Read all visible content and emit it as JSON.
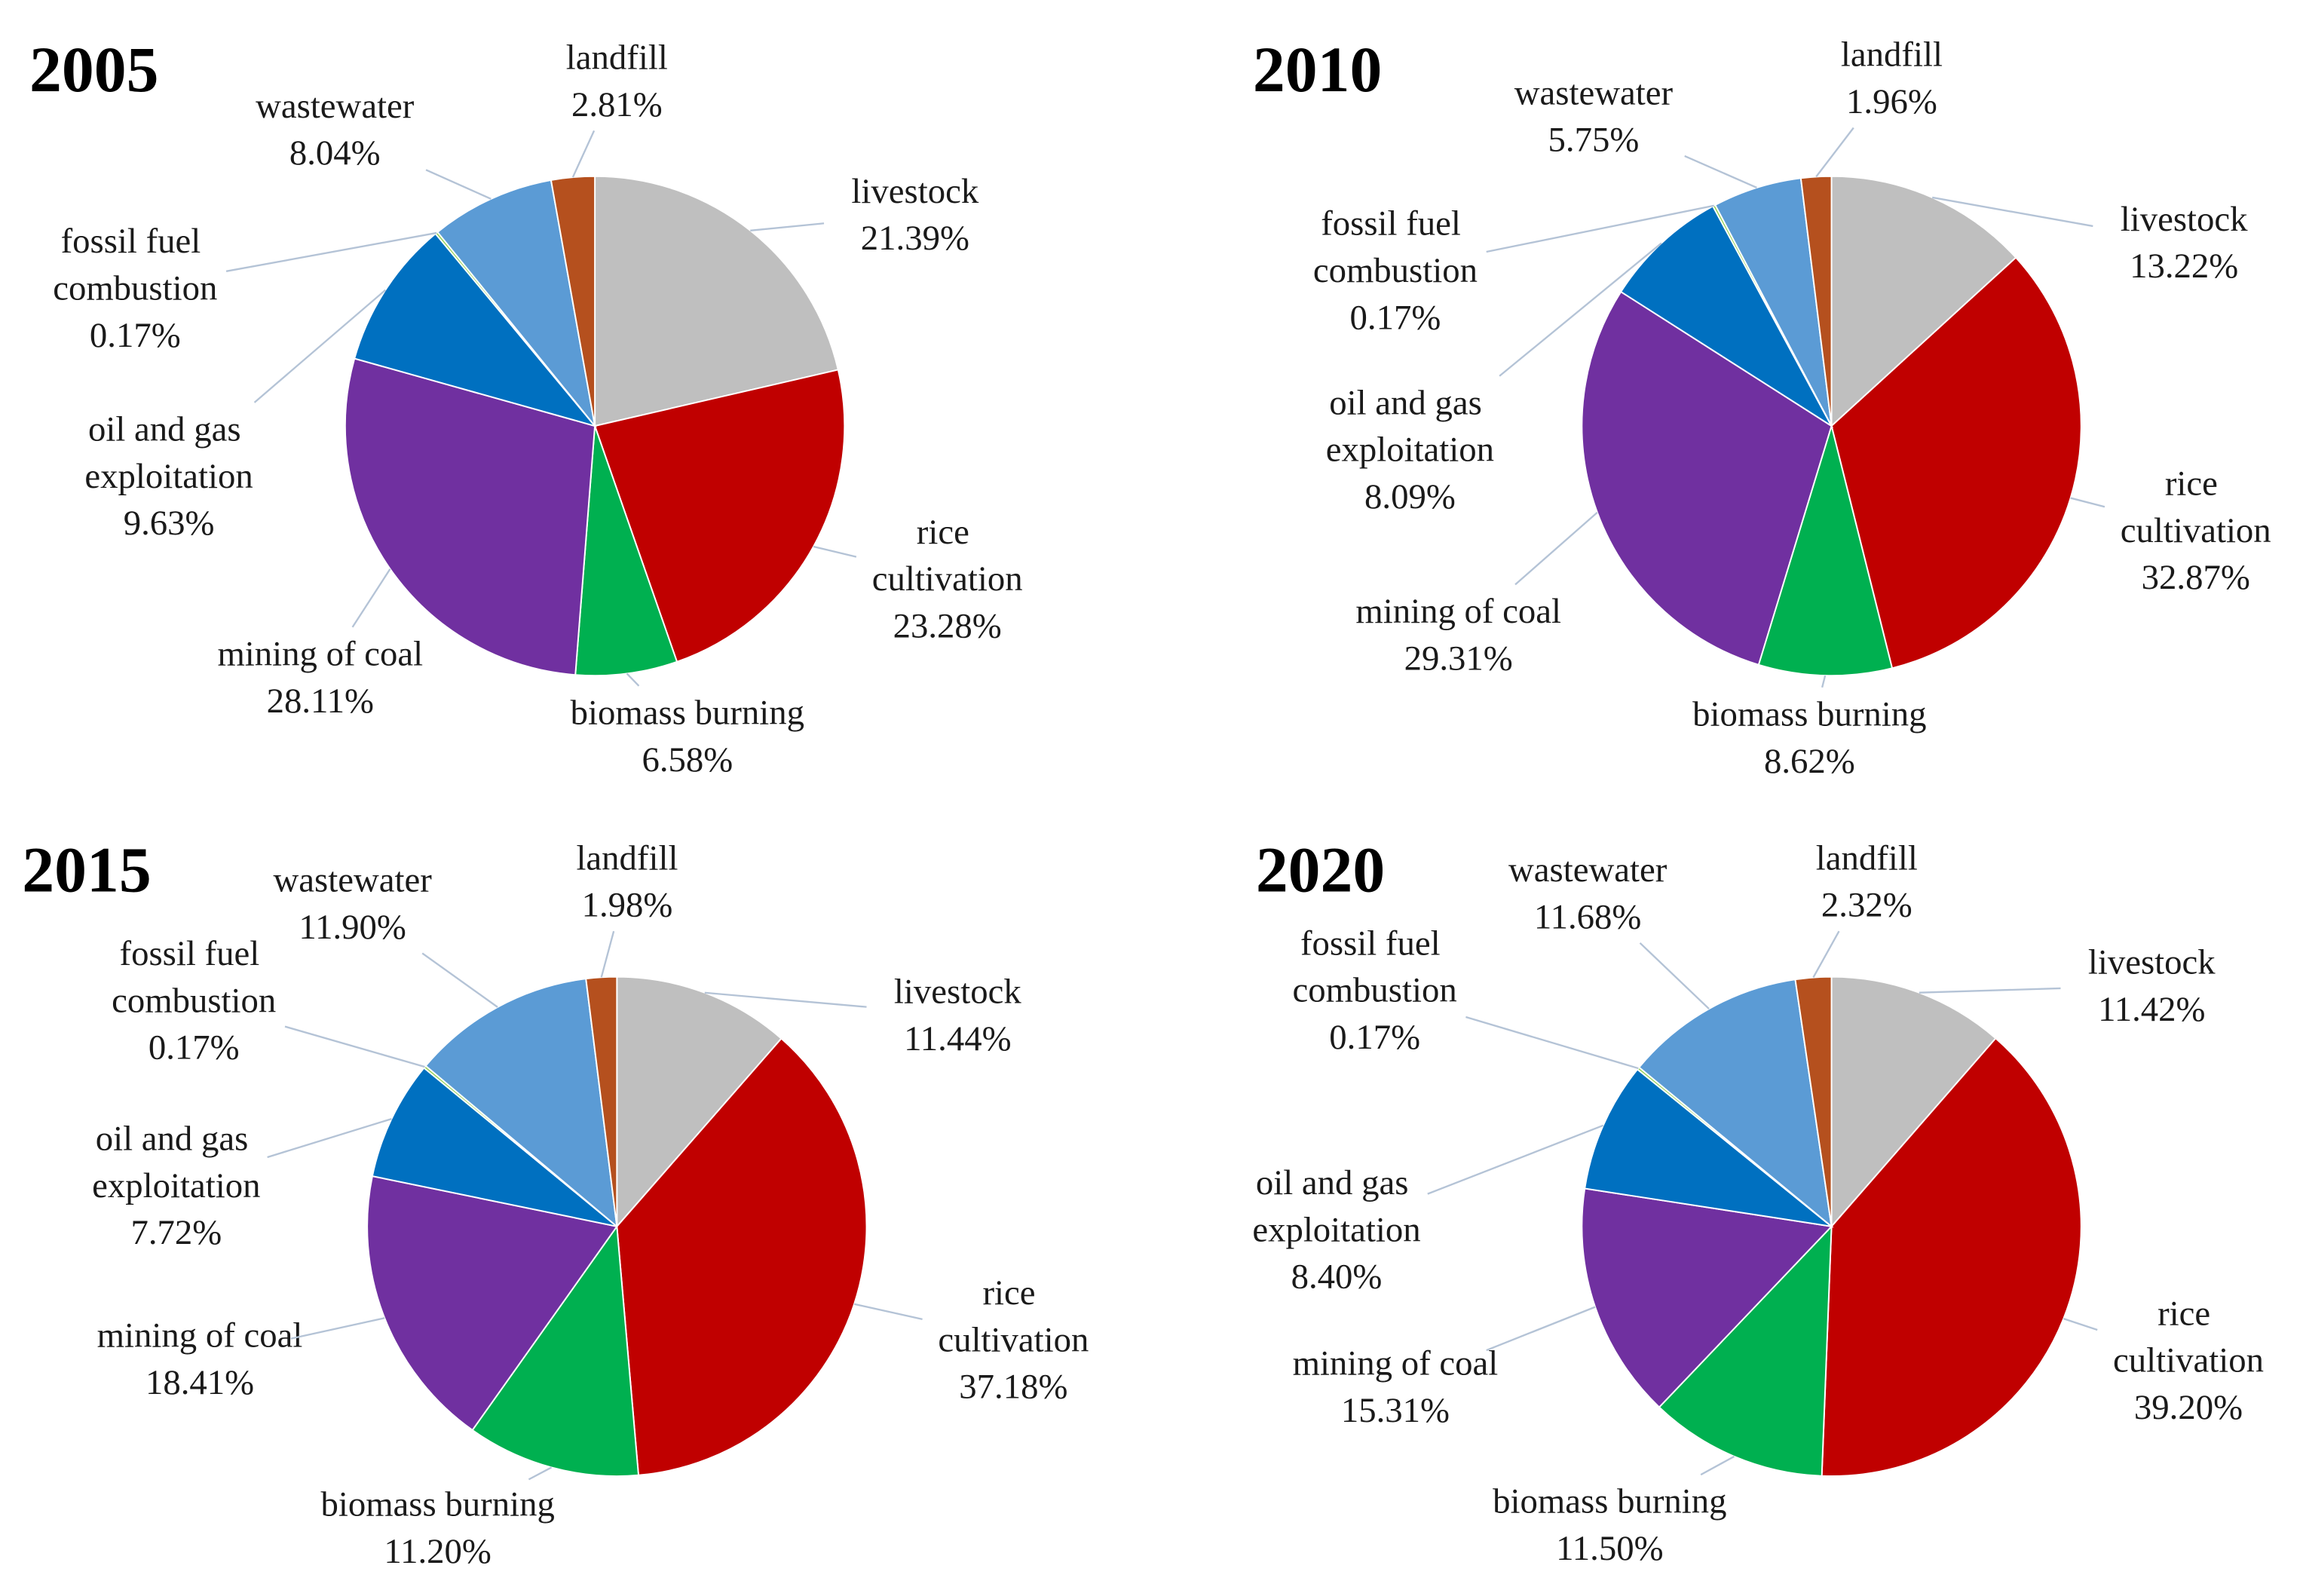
{
  "chart_data": [
    {
      "type": "pie",
      "title": "2005",
      "categories": [
        "livestock",
        "rice cultivation",
        "biomass burning",
        "mining of coal",
        "oil and gas exploitation",
        "fossil fuel combustion",
        "wastewater",
        "landfill"
      ],
      "values": [
        21.39,
        23.28,
        6.58,
        28.11,
        9.63,
        0.17,
        8.04,
        2.81
      ],
      "value_labels": [
        "21.39%",
        "23.28%",
        "6.58%",
        "28.11%",
        "9.63%",
        "0.17%",
        "8.04%",
        "2.81%"
      ],
      "colors": [
        "#bfbfbf",
        "#c00000",
        "#00b050",
        "#7030a0",
        "#0070c0",
        "#92d050",
        "#5b9bd5",
        "#b5501e"
      ]
    },
    {
      "type": "pie",
      "title": "2010",
      "categories": [
        "livestock",
        "rice cultivation",
        "biomass burning",
        "mining of coal",
        "oil and gas exploitation",
        "fossil fuel combustion",
        "wastewater",
        "landfill"
      ],
      "values": [
        13.22,
        32.87,
        8.62,
        29.31,
        8.09,
        0.17,
        5.75,
        1.96
      ],
      "value_labels": [
        "13.22%",
        "32.87%",
        "8.62%",
        "29.31%",
        "8.09%",
        "0.17%",
        "5.75%",
        "1.96%"
      ],
      "colors": [
        "#bfbfbf",
        "#c00000",
        "#00b050",
        "#7030a0",
        "#0070c0",
        "#92d050",
        "#5b9bd5",
        "#b5501e"
      ]
    },
    {
      "type": "pie",
      "title": "2015",
      "categories": [
        "livestock",
        "rice cultivation",
        "biomass burning",
        "mining of coal",
        "oil and gas exploitation",
        "fossil fuel combustion",
        "wastewater",
        "landfill"
      ],
      "values": [
        11.44,
        37.18,
        11.2,
        18.41,
        7.72,
        0.17,
        11.9,
        1.98
      ],
      "value_labels": [
        "11.44%",
        "37.18%",
        "11.20%",
        "18.41%",
        "7.72%",
        "0.17%",
        "11.90%",
        "1.98%"
      ],
      "colors": [
        "#bfbfbf",
        "#c00000",
        "#00b050",
        "#7030a0",
        "#0070c0",
        "#92d050",
        "#5b9bd5",
        "#b5501e"
      ]
    },
    {
      "type": "pie",
      "title": "2020",
      "categories": [
        "livestock",
        "rice cultivation",
        "biomass burning",
        "mining of coal",
        "oil and gas exploitation",
        "fossil fuel combustion",
        "wastewater",
        "landfill"
      ],
      "values": [
        11.42,
        39.2,
        11.5,
        15.31,
        8.4,
        0.17,
        11.68,
        2.32
      ],
      "value_labels": [
        "11.42%",
        "39.20%",
        "11.50%",
        "15.31%",
        "8.40%",
        "0.17%",
        "11.68%",
        "2.32%"
      ],
      "colors": [
        "#bfbfbf",
        "#c00000",
        "#00b050",
        "#7030a0",
        "#0070c0",
        "#92d050",
        "#5b9bd5",
        "#b5501e"
      ]
    }
  ]
}
